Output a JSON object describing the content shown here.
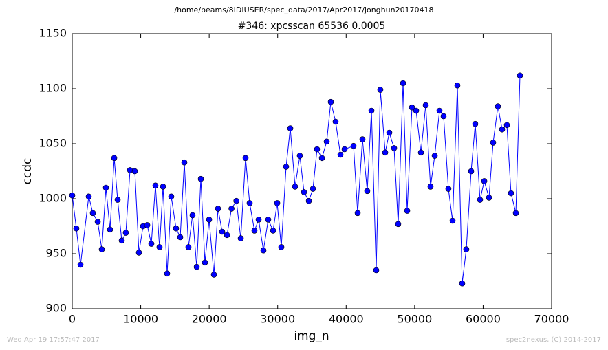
{
  "chart_data": {
    "type": "line",
    "suptitle": "/home/beams/8IDIUSER/spec_data/2017/Apr2017/jonghun20170418",
    "title": "#346: xpcsscan 65536 0.0005",
    "xlabel": "img_n",
    "ylabel": "ccdc",
    "footer_left": "Wed Apr 19 17:57:47 2017",
    "footer_right": "spec2nexus, (C) 2014-2017",
    "xlim": [
      0,
      70000
    ],
    "xticks": [
      0,
      10000,
      20000,
      30000,
      40000,
      50000,
      60000,
      70000
    ],
    "ylim": [
      900,
      1150
    ],
    "yticks": [
      900,
      950,
      1000,
      1050,
      1100,
      1150
    ],
    "grid": false,
    "marker": "circle",
    "x": [
      0,
      600,
      1210,
      2410,
      3010,
      3720,
      4320,
      4920,
      5520,
      6130,
      6630,
      7230,
      7830,
      8440,
      9140,
      9740,
      10340,
      10950,
      11550,
      12150,
      12750,
      13260,
      13860,
      14460,
      15160,
      15770,
      16370,
      16970,
      17570,
      18180,
      18780,
      19380,
      19990,
      20690,
      21290,
      21890,
      22600,
      23260,
      23970,
      24610,
      25310,
      25910,
      26610,
      27220,
      27920,
      28620,
      29330,
      29930,
      30530,
      31230,
      31840,
      32540,
      33240,
      33850,
      34550,
      35150,
      35750,
      36460,
      37160,
      37760,
      38460,
      39170,
      39770,
      41080,
      41680,
      42380,
      43080,
      43690,
      44390,
      44990,
      45700,
      46300,
      47000,
      47600,
      48310,
      48910,
      49610,
      50220,
      50920,
      51620,
      52320,
      52930,
      53630,
      54230,
      54930,
      55540,
      56240,
      56940,
      57540,
      58250,
      58850,
      59550,
      60160,
      60860,
      61460,
      62160,
      62770,
      63470,
      64070,
      64780,
      65380
    ],
    "series": [
      {
        "color": "#0000ff",
        "values": [
          1003,
          973,
          940,
          1002,
          987,
          979,
          954,
          1010,
          972,
          1037,
          999,
          962,
          969,
          1026,
          1025,
          951,
          975,
          976,
          959,
          1012,
          956,
          1011,
          932,
          1002,
          973,
          965,
          1033,
          956,
          985,
          938,
          1018,
          942,
          981,
          931,
          991,
          970,
          967,
          991,
          998,
          964,
          1037,
          996,
          971,
          981,
          953,
          981,
          971,
          996,
          956,
          1029,
          1064,
          1011,
          1039,
          1006,
          998,
          1009,
          1045,
          1037,
          1052,
          1088,
          1070,
          1040,
          1045,
          1048,
          987,
          1054,
          1007,
          1080,
          935,
          1099,
          1042,
          1060,
          1046,
          977,
          1105,
          989,
          1083,
          1080,
          1042,
          1085,
          1011,
          1039,
          1080,
          1075,
          1009,
          980,
          1103,
          923,
          954,
          1025,
          1068,
          999,
          1016,
          1001,
          1051,
          1084,
          1063,
          1067,
          1005,
          987,
          1112
        ]
      }
    ]
  }
}
